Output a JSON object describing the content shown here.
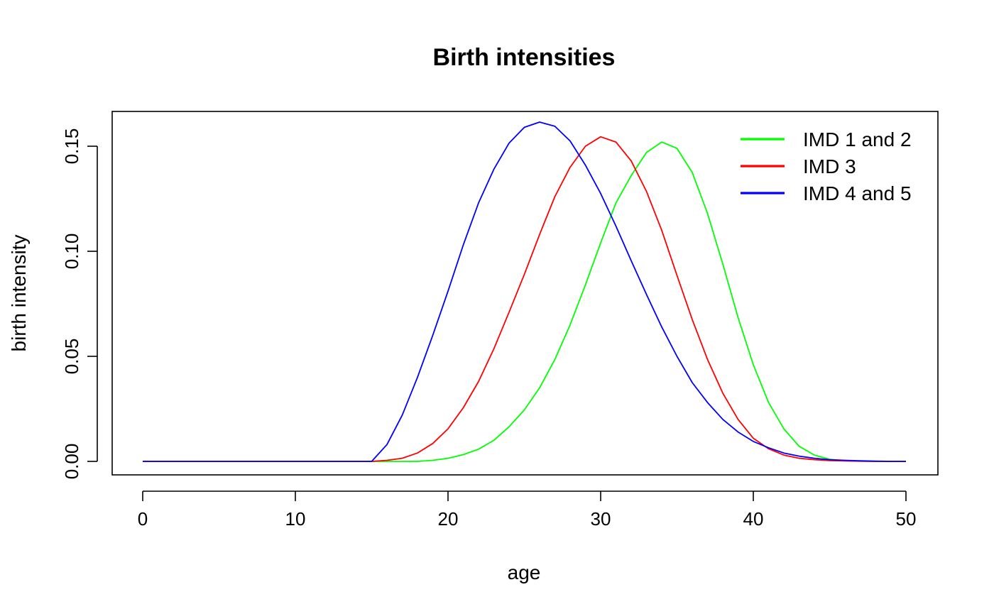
{
  "chart_data": {
    "type": "line",
    "title": "Birth intensities",
    "xlabel": "age",
    "ylabel": "birth intensity",
    "xlim": [
      0,
      50
    ],
    "ylim": [
      0,
      0.16
    ],
    "xticks": [
      0,
      10,
      20,
      30,
      40,
      50
    ],
    "yticks": [
      0.0,
      0.05,
      0.1,
      0.15
    ],
    "ytick_labels": [
      "0.00",
      "0.05",
      "0.10",
      "0.15"
    ],
    "legend_position": "top-right",
    "grid": false,
    "x": [
      0,
      1,
      2,
      3,
      4,
      5,
      6,
      7,
      8,
      9,
      10,
      11,
      12,
      13,
      14,
      15,
      16,
      17,
      18,
      19,
      20,
      21,
      22,
      23,
      24,
      25,
      26,
      27,
      28,
      29,
      30,
      31,
      32,
      33,
      34,
      35,
      36,
      37,
      38,
      39,
      40,
      41,
      42,
      43,
      44,
      45,
      46,
      47,
      48,
      49,
      50
    ],
    "series": [
      {
        "name": "IMD 1 and 2",
        "color": "#00ff00",
        "values": [
          0,
          0,
          0,
          0,
          0,
          0,
          0,
          0,
          0,
          0,
          0,
          0,
          0,
          0,
          0,
          0,
          0,
          0,
          0,
          0.0005,
          0.0015,
          0.0032,
          0.0058,
          0.01,
          0.0165,
          0.0245,
          0.035,
          0.0485,
          0.065,
          0.084,
          0.104,
          0.123,
          0.136,
          0.147,
          0.152,
          0.149,
          0.1375,
          0.118,
          0.094,
          0.0685,
          0.046,
          0.028,
          0.0155,
          0.0072,
          0.003,
          0.001,
          0.0003,
          0.0001,
          0,
          0,
          0
        ]
      },
      {
        "name": "IMD 3",
        "color": "#ff0000",
        "values": [
          0,
          0,
          0,
          0,
          0,
          0,
          0,
          0,
          0,
          0,
          0,
          0,
          0,
          0,
          0,
          0,
          0.0005,
          0.0015,
          0.004,
          0.0085,
          0.0155,
          0.0255,
          0.038,
          0.0535,
          0.071,
          0.089,
          0.108,
          0.126,
          0.14,
          0.15,
          0.1545,
          0.152,
          0.143,
          0.1285,
          0.11,
          0.0885,
          0.0675,
          0.0485,
          0.0325,
          0.02,
          0.011,
          0.006,
          0.003,
          0.0015,
          0.0008,
          0.0004,
          0.0002,
          0.0001,
          0,
          0,
          0
        ]
      },
      {
        "name": "IMD 4 and 5",
        "color": "#0000ff",
        "values": [
          0,
          0,
          0,
          0,
          0,
          0,
          0,
          0,
          0,
          0,
          0,
          0,
          0,
          0,
          0,
          0,
          0.008,
          0.022,
          0.04,
          0.06,
          0.081,
          0.103,
          0.123,
          0.139,
          0.1515,
          0.159,
          0.1615,
          0.1595,
          0.1525,
          0.141,
          0.1275,
          0.112,
          0.0955,
          0.0795,
          0.064,
          0.05,
          0.0375,
          0.028,
          0.02,
          0.014,
          0.0095,
          0.0065,
          0.004,
          0.0025,
          0.0015,
          0.0008,
          0.0005,
          0.0003,
          0.0001,
          0,
          0
        ]
      }
    ]
  }
}
